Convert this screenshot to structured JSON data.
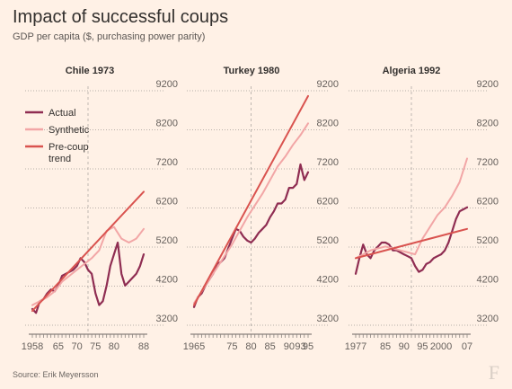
{
  "header": {
    "title": "Impact of successful coups",
    "subtitle": "GDP per capita ($, purchasing power parity)"
  },
  "footer": {
    "source": "Source: Erik Meyersson",
    "logo": "F"
  },
  "colors": {
    "actual": "#8f2d52",
    "synthetic": "#f2a6a6",
    "trend": "#d9534f",
    "grid": "#9e9894",
    "background": "#fff1e6"
  },
  "legend": [
    {
      "key": "actual",
      "label": "Actual"
    },
    {
      "key": "synthetic",
      "label": "Synthetic"
    },
    {
      "key": "trend",
      "label": "Pre-coup trend"
    }
  ],
  "chart_data": [
    {
      "type": "line",
      "title": "Chile 1973",
      "xlim": [
        1958,
        1988
      ],
      "ylim": [
        3200,
        9200
      ],
      "yticks": [
        3200,
        4200,
        5200,
        6200,
        7200,
        8200,
        9200
      ],
      "xtick_labels": [
        {
          "x": 1958,
          "label": "1958"
        },
        {
          "x": 1965,
          "label": "65"
        },
        {
          "x": 1970,
          "label": "70"
        },
        {
          "x": 1975,
          "label": "75"
        },
        {
          "x": 1980,
          "label": "80"
        },
        {
          "x": 1988,
          "label": "88"
        }
      ],
      "coup_year": 1973,
      "grid": "dotted horizontal",
      "series": [
        {
          "name": "Actual",
          "key": "actual",
          "x": [
            1958,
            1959,
            1960,
            1961,
            1962,
            1963,
            1964,
            1965,
            1966,
            1967,
            1968,
            1969,
            1970,
            1971,
            1972,
            1973,
            1974,
            1975,
            1976,
            1977,
            1978,
            1979,
            1980,
            1981,
            1982,
            1983,
            1984,
            1985,
            1986,
            1987,
            1988
          ],
          "y": [
            3500,
            3400,
            3700,
            3750,
            3900,
            4000,
            3950,
            4100,
            4350,
            4400,
            4450,
            4500,
            4600,
            4800,
            4700,
            4500,
            4400,
            3900,
            3600,
            3700,
            4100,
            4600,
            4900,
            5200,
            4400,
            4100,
            4200,
            4300,
            4400,
            4600,
            4900
          ]
        },
        {
          "name": "Synthetic",
          "key": "synthetic",
          "x": [
            1958,
            1960,
            1962,
            1964,
            1966,
            1968,
            1970,
            1972,
            1974,
            1976,
            1978,
            1980,
            1982,
            1984,
            1986,
            1988
          ],
          "y": [
            3600,
            3700,
            3800,
            3950,
            4200,
            4350,
            4500,
            4650,
            4800,
            5000,
            5500,
            5600,
            5300,
            5200,
            5300,
            5550
          ]
        },
        {
          "name": "Pre-coup trend",
          "key": "trend",
          "x": [
            1958,
            1988
          ],
          "y": [
            3450,
            6500
          ]
        }
      ]
    },
    {
      "type": "line",
      "title": "Turkey 1980",
      "xlim": [
        1965,
        1995
      ],
      "ylim": [
        3200,
        9200
      ],
      "yticks": [
        3200,
        4200,
        5200,
        6200,
        7200,
        8200,
        9200
      ],
      "xtick_labels": [
        {
          "x": 1965,
          "label": "1965"
        },
        {
          "x": 1975,
          "label": "75"
        },
        {
          "x": 1980,
          "label": "80"
        },
        {
          "x": 1985,
          "label": "85"
        },
        {
          "x": 1990,
          "label": "90"
        },
        {
          "x": 1993,
          "label": "93"
        },
        {
          "x": 1995,
          "label": "95"
        }
      ],
      "coup_year": 1980,
      "grid": "dotted horizontal",
      "series": [
        {
          "name": "Actual",
          "key": "actual",
          "x": [
            1965,
            1966,
            1967,
            1968,
            1969,
            1970,
            1971,
            1972,
            1973,
            1974,
            1975,
            1976,
            1977,
            1978,
            1979,
            1980,
            1981,
            1982,
            1983,
            1984,
            1985,
            1986,
            1987,
            1988,
            1989,
            1990,
            1991,
            1992,
            1993,
            1994,
            1995
          ],
          "y": [
            3550,
            3800,
            3900,
            4100,
            4250,
            4400,
            4650,
            4700,
            4800,
            5050,
            5300,
            5550,
            5500,
            5350,
            5250,
            5200,
            5300,
            5450,
            5550,
            5650,
            5850,
            6000,
            6200,
            6200,
            6300,
            6600,
            6600,
            6700,
            7200,
            6800,
            7000
          ]
        },
        {
          "name": "Synthetic",
          "key": "synthetic",
          "x": [
            1965,
            1967,
            1969,
            1971,
            1973,
            1975,
            1977,
            1979,
            1981,
            1983,
            1985,
            1987,
            1989,
            1991,
            1993,
            1995
          ],
          "y": [
            3650,
            3950,
            4250,
            4550,
            4850,
            5150,
            5500,
            5850,
            6150,
            6450,
            6800,
            7150,
            7400,
            7700,
            7950,
            8250
          ]
        },
        {
          "name": "Pre-coup trend",
          "key": "trend",
          "x": [
            1965,
            1995
          ],
          "y": [
            3600,
            8950
          ]
        }
      ]
    },
    {
      "type": "line",
      "title": "Algeria 1992",
      "xlim": [
        1977,
        2007
      ],
      "ylim": [
        3200,
        9200
      ],
      "yticks": [
        3200,
        4200,
        5200,
        6200,
        7200,
        8200,
        9200
      ],
      "xtick_labels": [
        {
          "x": 1977,
          "label": "1977"
        },
        {
          "x": 1985,
          "label": "85"
        },
        {
          "x": 1990,
          "label": "90"
        },
        {
          "x": 1995,
          "label": "95"
        },
        {
          "x": 2000,
          "label": "2000"
        },
        {
          "x": 2007,
          "label": "07"
        }
      ],
      "coup_year": 1992,
      "grid": "dotted horizontal",
      "series": [
        {
          "name": "Actual",
          "key": "actual",
          "x": [
            1977,
            1978,
            1979,
            1980,
            1981,
            1982,
            1983,
            1984,
            1985,
            1986,
            1987,
            1988,
            1989,
            1990,
            1991,
            1992,
            1993,
            1994,
            1995,
            1996,
            1997,
            1998,
            1999,
            2000,
            2001,
            2002,
            2003,
            2004,
            2005,
            2006,
            2007
          ],
          "y": [
            4400,
            4800,
            5150,
            4900,
            4800,
            5000,
            5100,
            5200,
            5200,
            5150,
            5000,
            5000,
            4950,
            4900,
            4850,
            4800,
            4600,
            4450,
            4500,
            4650,
            4700,
            4800,
            4850,
            4900,
            5000,
            5200,
            5500,
            5800,
            6000,
            6050,
            6100
          ]
        },
        {
          "name": "Synthetic",
          "key": "synthetic",
          "x": [
            1977,
            1979,
            1981,
            1983,
            1985,
            1987,
            1989,
            1991,
            1993,
            1995,
            1997,
            1999,
            2001,
            2003,
            2005,
            2007
          ],
          "y": [
            4800,
            4900,
            5000,
            5050,
            5100,
            5050,
            5000,
            4950,
            4900,
            5300,
            5600,
            5900,
            6100,
            6400,
            6750,
            7350
          ]
        },
        {
          "name": "Pre-coup trend",
          "key": "trend",
          "x": [
            1977,
            2007
          ],
          "y": [
            4800,
            5550
          ]
        }
      ]
    }
  ]
}
